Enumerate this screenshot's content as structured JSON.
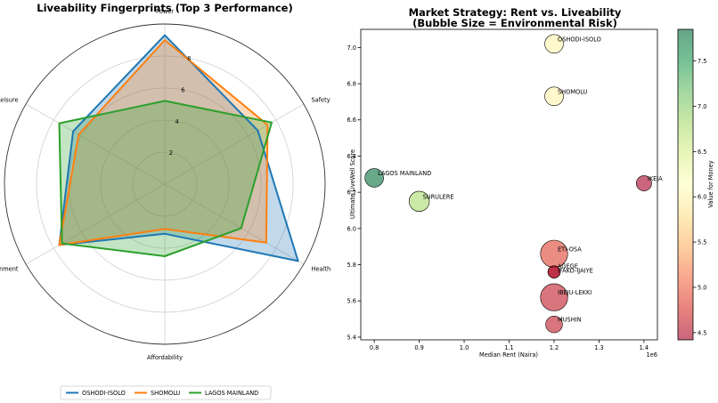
{
  "chart_data": [
    {
      "type": "radar",
      "title": "Liveability Fingerprints (Top 3 Performance)",
      "axes": [
        "Power",
        "Safety",
        "Health",
        "Affordability",
        "Environment",
        "Leisure"
      ],
      "rlim": [
        0,
        10
      ],
      "rticks": [
        2,
        4,
        6,
        8
      ],
      "rtick_labels": [
        "2",
        "4",
        "6",
        "8"
      ],
      "legend_position": "bottom-center",
      "series": [
        {
          "name": "OSHODI-ISOLO",
          "color": "#1f77b4",
          "values": [
            9.3,
            6.7,
            9.6,
            3.1,
            7.6,
            6.6
          ]
        },
        {
          "name": "SHOMOLU",
          "color": "#ff7f0e",
          "values": [
            9.0,
            7.4,
            7.3,
            2.8,
            7.6,
            6.2
          ]
        },
        {
          "name": "LAGOS MAINLAND",
          "color": "#2ca02c",
          "values": [
            5.2,
            7.7,
            5.5,
            4.5,
            7.4,
            7.6
          ]
        }
      ]
    },
    {
      "type": "scatter",
      "title_lines": [
        "Market Strategy: Rent vs. Liveability",
        "(Bubble Size = Environmental Risk)"
      ],
      "xlabel": "Median Rent (Naira)",
      "ylabel": "Ultimate LiveWell Score",
      "x_offset_label": "1e6",
      "xlim": [
        0.77,
        1.43
      ],
      "ylim": [
        5.385,
        7.1
      ],
      "xticks": [
        0.8,
        0.9,
        1.0,
        1.1,
        1.2,
        1.3,
        1.4
      ],
      "xtick_labels": [
        "0.8",
        "0.9",
        "1.0",
        "1.1",
        "1.2",
        "1.3",
        "1.4"
      ],
      "yticks": [
        5.4,
        5.6,
        5.8,
        6.0,
        6.2,
        6.4,
        6.6,
        6.8,
        7.0
      ],
      "ytick_labels": [
        "5.4",
        "5.6",
        "5.8",
        "6.0",
        "6.2",
        "6.4",
        "6.6",
        "6.8",
        "7.0"
      ],
      "colorbar": {
        "label": "Value for Money",
        "range": [
          4.42,
          7.85
        ],
        "ticks": [
          4.5,
          5.0,
          5.5,
          6.0,
          6.5,
          7.0,
          7.5
        ],
        "tick_labels": [
          "4.5",
          "5.0",
          "5.5",
          "6.0",
          "6.5",
          "7.0",
          "7.5"
        ]
      },
      "points": [
        {
          "name": "OSHODI-ISOLO",
          "x": 1.2,
          "y": 7.02,
          "color_value": 6.0,
          "risk": 1.0
        },
        {
          "name": "SHOMOLU",
          "x": 1.2,
          "y": 6.73,
          "color_value": 6.0,
          "risk": 1.0
        },
        {
          "name": "LAGOS MAINLAND",
          "x": 0.8,
          "y": 6.28,
          "color_value": 7.8,
          "risk": 1.0
        },
        {
          "name": "IKEJA",
          "x": 1.4,
          "y": 6.25,
          "color_value": 4.4,
          "risk": 0.5
        },
        {
          "name": "SURULERE",
          "x": 0.9,
          "y": 6.15,
          "color_value": 6.8,
          "risk": 1.3
        },
        {
          "name": "ETI-OSA",
          "x": 1.2,
          "y": 5.86,
          "color_value": 4.85,
          "risk": 3.0
        },
        {
          "name": "AGEGE",
          "x": 1.2,
          "y": 5.76,
          "color_value": 4.5,
          "risk": 0.2
        },
        {
          "name": "IFAKO-IJAIYE",
          "x": 1.2,
          "y": 5.76,
          "color_value": 4.5,
          "risk": 0.2
        },
        {
          "name": "IBEJU-LEKKI",
          "x": 1.2,
          "y": 5.62,
          "color_value": 4.6,
          "risk": 3.0
        },
        {
          "name": "MUSHIN",
          "x": 1.2,
          "y": 5.47,
          "color_value": 4.6,
          "risk": 0.7
        }
      ]
    }
  ]
}
